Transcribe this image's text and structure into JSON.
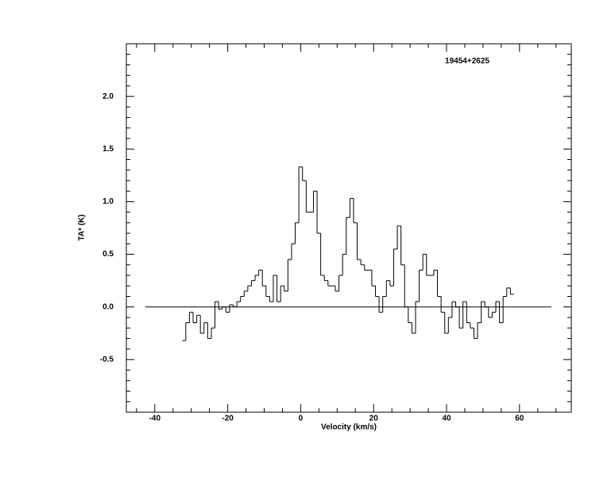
{
  "chart_data": {
    "type": "step",
    "annotation": "19454+2625",
    "xlabel": "Velocity (km/s)",
    "ylabel": "TA* (K)",
    "xlim": [
      -47.8,
      74.2
    ],
    "ylim": [
      -1.0,
      2.5
    ],
    "xticks": [
      -40,
      -20,
      0,
      20,
      40,
      60
    ],
    "yticks": [
      -0.5,
      {
        "value": 0,
        "label": "0.0"
      },
      0.5,
      {
        "value": 1,
        "label": "1.0"
      },
      1.5,
      {
        "value": 2,
        "label": "2.0"
      }
    ],
    "xminorticks": [
      -45,
      -35,
      -30,
      -25,
      -15,
      -10,
      -5,
      5,
      10,
      15,
      25,
      30,
      35,
      45,
      50,
      55,
      65,
      70
    ],
    "yminorticks": [
      -0.9,
      -0.8,
      -0.7,
      -0.6,
      -0.4,
      -0.3,
      -0.2,
      -0.1,
      0.1,
      0.2,
      0.3,
      0.4,
      0.6,
      0.7,
      0.8,
      0.9,
      1.1,
      1.2,
      1.3,
      1.4,
      1.6,
      1.7,
      1.8,
      1.9,
      2.1,
      2.2,
      2.3,
      2.4
    ],
    "baseline": {
      "x": [
        -42.6,
        68.7
      ],
      "y": 0
    },
    "color": "#000000",
    "x": [
      -32,
      -31,
      -30,
      -29,
      -28,
      -27,
      -26,
      -25,
      -24,
      -23,
      -22,
      -21,
      -20,
      -19,
      -18,
      -17,
      -16,
      -15,
      -14,
      -13,
      -12,
      -11,
      -10,
      -9,
      -8,
      -7,
      -6,
      -5,
      -4,
      -3,
      -2,
      -1,
      0,
      1,
      2,
      3,
      4,
      5,
      6,
      7,
      8,
      9,
      10,
      11,
      12,
      13,
      14,
      15,
      16,
      17,
      18,
      19,
      20,
      21,
      22,
      23,
      24,
      25,
      26,
      27,
      28,
      29,
      30,
      31,
      32,
      33,
      34,
      35,
      36,
      37,
      38,
      39,
      40,
      41,
      42,
      43,
      44,
      45,
      46,
      47,
      48,
      49,
      50,
      51,
      52,
      53,
      54,
      55,
      56,
      57,
      58
    ],
    "values": [
      -0.32,
      -0.15,
      -0.05,
      -0.15,
      -0.08,
      -0.25,
      -0.15,
      -0.3,
      -0.2,
      0.05,
      -0.02,
      0.0,
      -0.05,
      0.02,
      0.0,
      0.05,
      0.1,
      0.15,
      0.2,
      0.25,
      0.3,
      0.35,
      0.2,
      0.1,
      0.05,
      0.3,
      0.05,
      0.2,
      0.15,
      0.45,
      0.6,
      0.8,
      1.33,
      1.2,
      0.9,
      0.9,
      1.1,
      0.7,
      0.3,
      0.25,
      0.2,
      0.2,
      0.15,
      0.3,
      0.5,
      0.85,
      1.03,
      0.8,
      0.45,
      0.4,
      0.35,
      0.35,
      0.2,
      0.1,
      -0.05,
      0.1,
      0.25,
      0.2,
      0.55,
      0.77,
      0.4,
      0.0,
      -0.15,
      -0.25,
      0.05,
      0.35,
      0.5,
      0.3,
      0.3,
      0.35,
      0.1,
      -0.05,
      -0.25,
      -0.1,
      0.05,
      0.0,
      -0.2,
      0.05,
      -0.15,
      -0.2,
      -0.3,
      -0.15,
      0.05,
      0.0,
      -0.1,
      -0.05,
      0.05,
      -0.15,
      0.1,
      0.18,
      0.12
    ]
  }
}
